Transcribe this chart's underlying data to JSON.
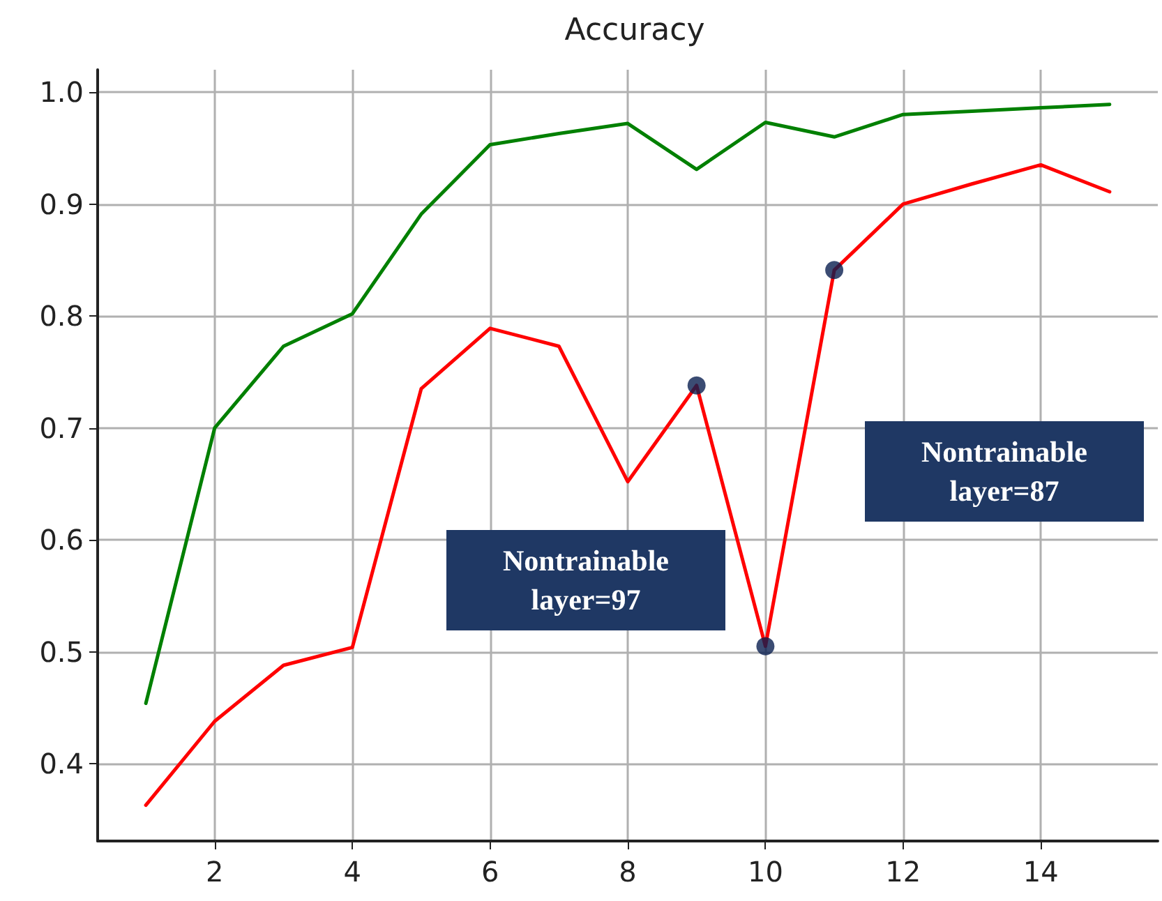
{
  "chart_data": {
    "type": "line",
    "title": "Accuracy",
    "x": [
      1,
      2,
      3,
      4,
      5,
      6,
      7,
      8,
      9,
      10,
      11,
      12,
      13,
      14,
      15
    ],
    "series": [
      {
        "color": "#008000",
        "values": [
          0.454,
          0.7,
          0.773,
          0.802,
          0.891,
          0.953,
          0.963,
          0.972,
          0.931,
          0.973,
          0.96,
          0.98,
          0.983,
          0.986,
          0.989
        ]
      },
      {
        "color": "#ff0000",
        "values": [
          0.363,
          0.438,
          0.488,
          0.504,
          0.735,
          0.789,
          0.773,
          0.652,
          0.738,
          0.505,
          0.841,
          0.9,
          0.918,
          0.935,
          0.911
        ]
      },
      {
        "type": "scatter",
        "color": "#0a1f50",
        "marker": "circle",
        "x": [
          9,
          10,
          11
        ],
        "values": [
          0.738,
          0.505,
          0.841
        ]
      }
    ],
    "xlim": [
      0.3,
      15.7
    ],
    "xticks": [
      2,
      4,
      6,
      8,
      10,
      12,
      14
    ],
    "ylim": [
      0.331,
      1.02
    ],
    "yticks": [
      0.4,
      0.5,
      0.6,
      0.7,
      0.8,
      0.9,
      {
        "value": 1,
        "label": "1.0"
      }
    ],
    "grid": true,
    "annotations": [
      "Nontrainable layer=97",
      "Nontrainable layer=87"
    ]
  }
}
